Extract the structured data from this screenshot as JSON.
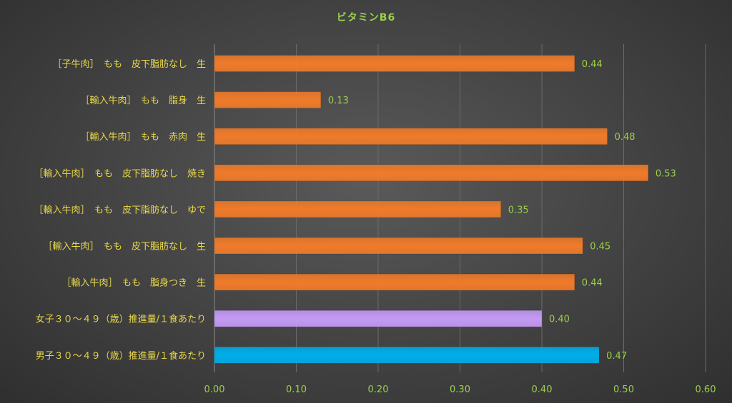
{
  "chart_data": {
    "type": "bar",
    "orientation": "horizontal",
    "title": "ビタミンB6",
    "categories": [
      "［子牛肉］　もも　皮下脂肪なし　生",
      "［輸入牛肉］　もも　脂身　生",
      "［輸入牛肉］　もも　赤肉　生",
      "［輸入牛肉］　もも　皮下脂肪なし　焼き",
      "［輸入牛肉］　もも　皮下脂肪なし　ゆで",
      "［輸入牛肉］　もも　皮下脂肪なし　生",
      "［輸入牛肉］　もも　脂身つき　生",
      "女子３０～４９（歳）推進量/１食あたり",
      "男子３０～４９（歳）推進量/１食あたり"
    ],
    "values": [
      0.44,
      0.13,
      0.48,
      0.53,
      0.35,
      0.45,
      0.44,
      0.4,
      0.47
    ],
    "value_labels": [
      "0.44",
      "0.13",
      "0.48",
      "0.53",
      "0.35",
      "0.45",
      "0.44",
      "0.40",
      "0.47"
    ],
    "bar_colors": [
      "#f07b2a",
      "#f07b2a",
      "#f07b2a",
      "#f07b2a",
      "#f07b2a",
      "#f07b2a",
      "#f07b2a",
      "#c59af5",
      "#00aeea"
    ],
    "xlim": [
      0,
      0.6
    ],
    "x_ticks": [
      0,
      0.1,
      0.2,
      0.3,
      0.4,
      0.5,
      0.6
    ],
    "x_tick_labels": [
      "0.00",
      "0.10",
      "0.20",
      "0.30",
      "0.40",
      "0.50",
      "0.60"
    ],
    "grid": true,
    "legend": "none",
    "colors": {
      "title": "#9bd04a",
      "category_text": "#e8d84a",
      "value_text": "#9bd04a",
      "gridline": "#6a6a6a"
    }
  }
}
